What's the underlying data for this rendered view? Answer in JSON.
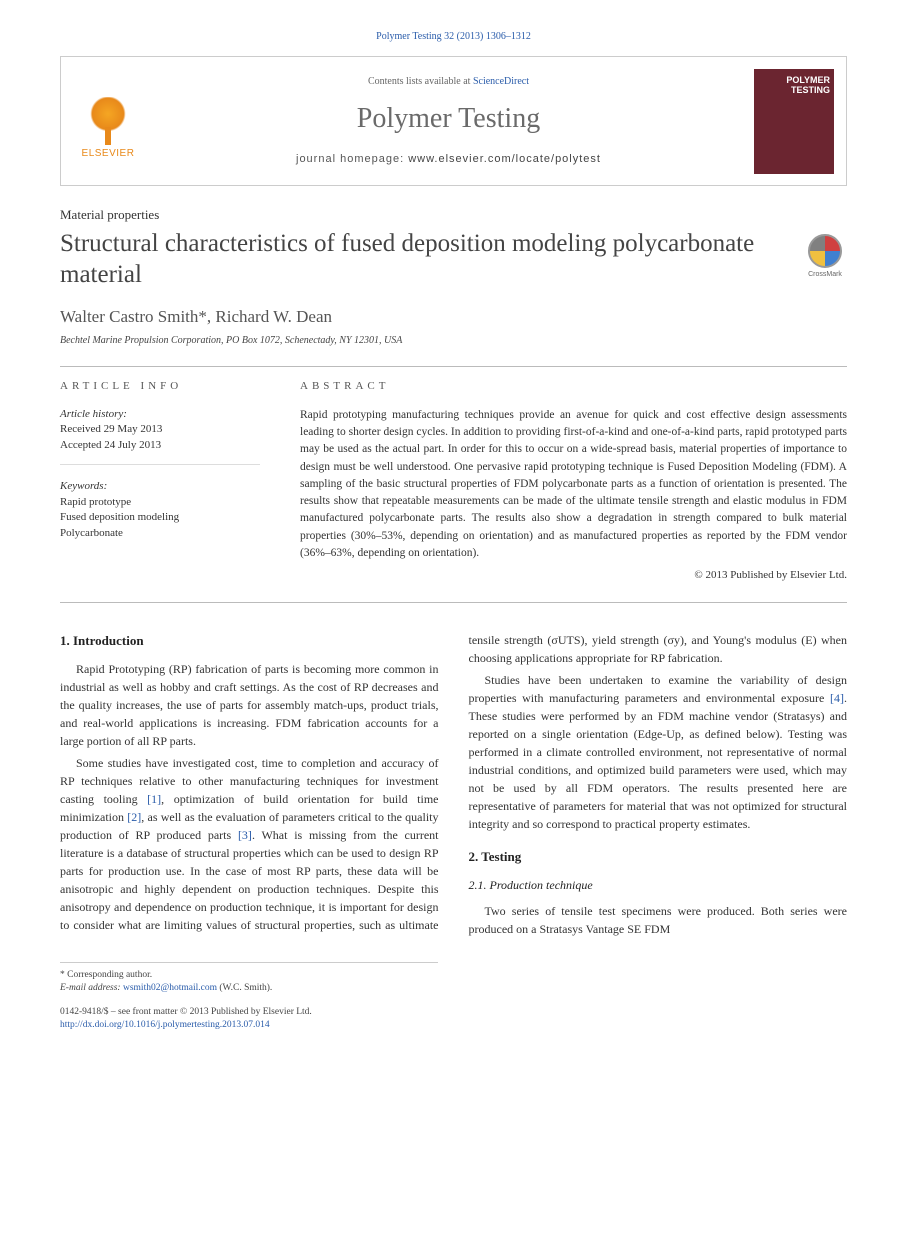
{
  "page_ref": "Polymer Testing 32 (2013) 1306–1312",
  "header": {
    "publisher": "ELSEVIER",
    "contents_prefix": "Contents lists available at ",
    "contents_link": "ScienceDirect",
    "journal_name": "Polymer Testing",
    "homepage_label": "journal homepage: ",
    "homepage_url": "www.elsevier.com/locate/polytest",
    "cover_text": "POLYMER TESTING"
  },
  "article": {
    "section_label": "Material properties",
    "title": "Structural characteristics of fused deposition modeling polycarbonate material",
    "crossmark_label": "CrossMark",
    "authors": "Walter Castro Smith*, Richard W. Dean",
    "affiliation": "Bechtel Marine Propulsion Corporation, PO Box 1072, Schenectady, NY 12301, USA"
  },
  "meta": {
    "info_heading": "ARTICLE INFO",
    "history_label": "Article history:",
    "received": "Received 29 May 2013",
    "accepted": "Accepted 24 July 2013",
    "keywords_label": "Keywords:",
    "keywords": [
      "Rapid prototype",
      "Fused deposition modeling",
      "Polycarbonate"
    ],
    "abstract_heading": "ABSTRACT",
    "abstract_text": "Rapid prototyping manufacturing techniques provide an avenue for quick and cost effective design assessments leading to shorter design cycles. In addition to providing first-of-a-kind and one-of-a-kind parts, rapid prototyped parts may be used as the actual part. In order for this to occur on a wide-spread basis, material properties of importance to design must be well understood. One pervasive rapid prototyping technique is Fused Deposition Modeling (FDM). A sampling of the basic structural properties of FDM polycarbonate parts as a function of orientation is presented. The results show that repeatable measurements can be made of the ultimate tensile strength and elastic modulus in FDM manufactured polycarbonate parts. The results also show a degradation in strength compared to bulk material properties (30%–53%, depending on orientation) and as manufactured properties as reported by the FDM vendor (36%–63%, depending on orientation).",
    "copyright": "© 2013 Published by Elsevier Ltd."
  },
  "body": {
    "s1_heading": "1. Introduction",
    "s1_p1": "Rapid Prototyping (RP) fabrication of parts is becoming more common in industrial as well as hobby and craft settings. As the cost of RP decreases and the quality increases, the use of parts for assembly match-ups, product trials, and real-world applications is increasing. FDM fabrication accounts for a large portion of all RP parts.",
    "s1_p2a": "Some studies have investigated cost, time to completion and accuracy of RP techniques relative to other manufacturing techniques for investment casting tooling ",
    "ref1": "[1]",
    "s1_p2b": ", optimization of build orientation for build time minimization ",
    "ref2": "[2]",
    "s1_p2c": ", as well as the evaluation of parameters critical to the quality production of RP produced parts ",
    "ref3": "[3]",
    "s1_p2d": ". What is missing from the current literature is a database of structural properties which can be used to design RP parts for production use. In the case of most RP parts, these data will be anisotropic and highly dependent on production techniques. Despite this anisotropy and dependence on production technique, it is important for design to consider what are limiting values of structural properties, such as ultimate tensile strength (σUTS), yield strength (σy), and Young's modulus (E) when choosing applications appropriate for RP fabrication.",
    "s1_p3a": "Studies have been undertaken to examine the variability of design properties with manufacturing parameters and environmental exposure ",
    "ref4": "[4]",
    "s1_p3b": ". These studies were performed by an FDM machine vendor (Stratasys) and reported on a single orientation (Edge-Up, as defined below). Testing was performed in a climate controlled environment, not representative of normal industrial conditions, and optimized build parameters were used, which may not be used by all FDM operators. The results presented here are representative of parameters for material that was not optimized for structural integrity and so correspond to practical property estimates.",
    "s2_heading": "2. Testing",
    "s2_1_heading": "2.1. Production technique",
    "s2_1_p1": "Two series of tensile test specimens were produced. Both series were produced on a Stratasys Vantage SE FDM"
  },
  "footnote": {
    "corr": "* Corresponding author.",
    "email_label": "E-mail address: ",
    "email": "wsmith02@hotmail.com",
    "email_suffix": " (W.C. Smith)."
  },
  "footer": {
    "left_line1": "0142-9418/$ – see front matter © 2013 Published by Elsevier Ltd.",
    "doi": "http://dx.doi.org/10.1016/j.polymertesting.2013.07.014"
  },
  "style": {
    "link_color": "#2a5caa",
    "publisher_color": "#e8891a",
    "cover_bg": "#6b2530",
    "text_color": "#333333"
  }
}
